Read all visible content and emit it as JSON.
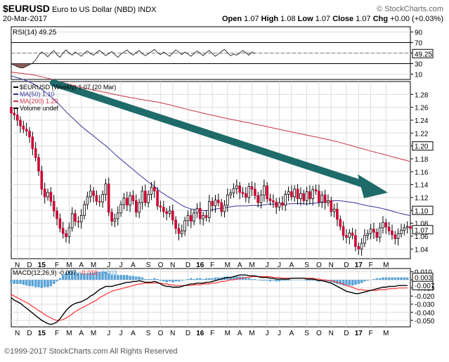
{
  "header": {
    "symbol": "$EURUSD",
    "name": "Euro to US Dollar (NBD)",
    "exchange": "INDX",
    "date": "20-Mar-2017",
    "open_label": "Open",
    "open": "1.07",
    "high_label": "High",
    "high": "1.08",
    "low_label": "Low",
    "low": "1.07",
    "close_label": "Close",
    "close": "1.07",
    "chg_label": "Chg",
    "chg": "+0.00 (+0.03%)",
    "watermark": "© StockCharts.com"
  },
  "footer": {
    "copyright": "©1999-2017 StockCharts.com All Rights Reserved"
  },
  "colors": {
    "up_candle": "#ffffff",
    "down_candle": "#cc0033",
    "candle_outline": "#000000",
    "ma50": "#333399",
    "ma200": "#cc3344",
    "arrow": "#1f6b6a",
    "rsi_line": "#333333",
    "rsi_fill": "#8c5a5a",
    "macd_line": "#000000",
    "signal_line": "#ff3333",
    "hist": "#5ba3d6",
    "grid": "#dddddd"
  },
  "chart_data": [
    {
      "type": "line",
      "panel": "rsi",
      "label": "RSI(14) 49.25",
      "last_value_label": "49.25",
      "ylim": [
        0,
        100
      ],
      "reference_lines": [
        70,
        30
      ],
      "y_ticks": [
        "90",
        "70",
        "50",
        "30",
        "10"
      ],
      "y_tick_values": [
        90,
        70,
        50,
        30,
        10
      ],
      "values": [
        29,
        27,
        24,
        22,
        22,
        25,
        28,
        31,
        37,
        46,
        52,
        48,
        43,
        50,
        55,
        47,
        42,
        50,
        56,
        50,
        46,
        52,
        48,
        44,
        50,
        54,
        49,
        46,
        51,
        55,
        50,
        45,
        49,
        53,
        47,
        42,
        48,
        52,
        56,
        50,
        46,
        51,
        55,
        49,
        45,
        49,
        53,
        57,
        51,
        47,
        52,
        48,
        44,
        50,
        56,
        52,
        47,
        52,
        48,
        44,
        49,
        54,
        50,
        45,
        51,
        55,
        49,
        44,
        48,
        53,
        57,
        51,
        45,
        48,
        46,
        50,
        55,
        51,
        46,
        52,
        49
      ]
    },
    {
      "type": "candlestick",
      "panel": "price",
      "legend": [
        {
          "label": "$EURUSD (Weekly) 1.07 (20 Mar)",
          "color": "#000000"
        },
        {
          "label": "MA(50) 1.10",
          "color": "#333399"
        },
        {
          "label": "MA(200) 1.20",
          "color": "#cc3344"
        },
        {
          "label": "Volume undef",
          "color": "#000000"
        }
      ],
      "ylim": [
        1.025,
        1.3
      ],
      "y_ticks": [
        "1.28",
        "1.26",
        "1.24",
        "1.22",
        "1.20",
        "1.18",
        "1.16",
        "1.14",
        "1.12",
        "1.10",
        "1.08",
        "1.06",
        "1.04"
      ],
      "y_tick_values": [
        1.28,
        1.26,
        1.24,
        1.22,
        1.2,
        1.18,
        1.16,
        1.14,
        1.12,
        1.1,
        1.08,
        1.06,
        1.04
      ],
      "last_labels": [
        "1.20",
        "1.10",
        "1.07"
      ],
      "last_label_values": [
        1.2,
        1.1,
        1.07
      ],
      "x_labels": [
        "N",
        "D",
        "15",
        "F",
        "M",
        "A",
        "M",
        "J",
        "J",
        "A",
        "S",
        "O",
        "N",
        "D",
        "16",
        "F",
        "M",
        "A",
        "M",
        "J",
        "J",
        "A",
        "S",
        "O",
        "N",
        "D",
        "17",
        "F",
        "M"
      ],
      "x_label_index": [
        2,
        6,
        10,
        15,
        19,
        23,
        27,
        32,
        36,
        40,
        45,
        49,
        53,
        58,
        62,
        66,
        71,
        75,
        79,
        84,
        88,
        92,
        97,
        101,
        105,
        110,
        114,
        118,
        123
      ],
      "close": [
        1.251,
        1.248,
        1.24,
        1.231,
        1.226,
        1.223,
        1.214,
        1.196,
        1.182,
        1.161,
        1.133,
        1.121,
        1.128,
        1.114,
        1.099,
        1.087,
        1.072,
        1.064,
        1.059,
        1.073,
        1.095,
        1.083,
        1.082,
        1.092,
        1.109,
        1.121,
        1.13,
        1.123,
        1.114,
        1.113,
        1.125,
        1.141,
        1.097,
        1.083,
        1.087,
        1.096,
        1.109,
        1.119,
        1.108,
        1.123,
        1.115,
        1.097,
        1.112,
        1.13,
        1.112,
        1.125,
        1.136,
        1.13,
        1.107,
        1.105,
        1.098,
        1.095,
        1.099,
        1.085,
        1.072,
        1.064,
        1.068,
        1.084,
        1.092,
        1.083,
        1.096,
        1.103,
        1.087,
        1.092,
        1.089,
        1.114,
        1.107,
        1.116,
        1.112,
        1.098,
        1.108,
        1.124,
        1.127,
        1.134,
        1.138,
        1.128,
        1.126,
        1.12,
        1.137,
        1.133,
        1.123,
        1.112,
        1.124,
        1.138,
        1.118,
        1.115,
        1.113,
        1.105,
        1.112,
        1.108,
        1.125,
        1.129,
        1.121,
        1.133,
        1.118,
        1.126,
        1.115,
        1.129,
        1.118,
        1.132,
        1.13,
        1.113,
        1.124,
        1.112,
        1.115,
        1.098,
        1.102,
        1.086,
        1.075,
        1.061,
        1.058,
        1.065,
        1.061,
        1.044,
        1.04,
        1.049,
        1.061,
        1.064,
        1.071,
        1.066,
        1.058,
        1.073,
        1.081,
        1.074,
        1.068,
        1.062,
        1.056,
        1.064,
        1.069,
        1.073,
        1.075,
        1.072
      ]
    },
    {
      "type": "line",
      "panel": "macd",
      "label": "MACD(12,26,9) -0.007, -0.010, 0.003",
      "label_macd": "MACD(12,26,9)",
      "label_v1": "-0.007",
      "label_v2": "-0.010",
      "label_v3": "0.003",
      "ylim": [
        -0.058,
        0.014
      ],
      "y_ticks": [
        "0.010",
        "0.000",
        "-0.010",
        "-0.020",
        "-0.030",
        "-0.040",
        "-0.050"
      ],
      "y_tick_values": [
        0.01,
        0.0,
        -0.01,
        -0.02,
        -0.03,
        -0.04,
        -0.05
      ],
      "last_labels": [
        "0.003",
        "-0.007"
      ],
      "last_label_values": [
        0.003,
        -0.007
      ],
      "x_labels": [
        "N",
        "D",
        "15",
        "F",
        "M",
        "A",
        "M",
        "J",
        "J",
        "A",
        "S",
        "O",
        "N",
        "D",
        "16",
        "F",
        "M",
        "A",
        "M",
        "J",
        "J",
        "A",
        "S",
        "O",
        "N",
        "D",
        "17",
        "F",
        "M"
      ],
      "x_label_index": [
        2,
        6,
        10,
        15,
        19,
        23,
        27,
        32,
        36,
        40,
        45,
        49,
        53,
        58,
        62,
        66,
        71,
        75,
        79,
        84,
        88,
        92,
        97,
        101,
        105,
        110,
        114,
        118,
        123
      ],
      "macd": [
        -0.022,
        -0.025,
        -0.027,
        -0.029,
        -0.032,
        -0.035,
        -0.038,
        -0.041,
        -0.044,
        -0.047,
        -0.05,
        -0.052,
        -0.054,
        -0.055,
        -0.054,
        -0.052,
        -0.048,
        -0.043,
        -0.038,
        -0.034,
        -0.031,
        -0.029,
        -0.028,
        -0.027,
        -0.025,
        -0.023,
        -0.02,
        -0.018,
        -0.015,
        -0.012,
        -0.01,
        -0.008,
        -0.008,
        -0.008,
        -0.007,
        -0.006,
        -0.005,
        -0.004,
        -0.003,
        -0.003,
        -0.002,
        -0.002,
        -0.001,
        -0.002,
        -0.003,
        -0.003,
        -0.003,
        -0.002,
        -0.003,
        -0.005,
        -0.007,
        -0.008,
        -0.008,
        -0.009,
        -0.009,
        -0.009,
        -0.008,
        -0.007,
        -0.006,
        -0.005,
        -0.005,
        -0.004,
        -0.004,
        -0.004,
        -0.003,
        -0.003,
        -0.002,
        -0.001,
        0.0,
        0.001,
        0.002,
        0.003,
        0.003,
        0.004,
        0.005,
        0.006,
        0.006,
        0.006,
        0.005,
        0.005,
        0.005,
        0.004,
        0.003,
        0.003,
        0.003,
        0.002,
        0.002,
        0.001,
        0.001,
        0.001,
        0.001,
        0.001,
        0.002,
        0.002,
        0.002,
        0.002,
        0.002,
        0.001,
        0.001,
        0.001,
        0.0,
        -0.001,
        -0.001,
        -0.002,
        -0.003,
        -0.004,
        -0.006,
        -0.008,
        -0.01,
        -0.012,
        -0.014,
        -0.015,
        -0.016,
        -0.017,
        -0.017,
        -0.016,
        -0.015,
        -0.014,
        -0.013,
        -0.012,
        -0.011,
        -0.01,
        -0.009,
        -0.009,
        -0.008,
        -0.008,
        -0.008,
        -0.007,
        -0.007,
        -0.007,
        -0.007
      ],
      "signal": [
        -0.018,
        -0.02,
        -0.022,
        -0.024,
        -0.026,
        -0.028,
        -0.03,
        -0.033,
        -0.035,
        -0.038,
        -0.04,
        -0.043,
        -0.045,
        -0.047,
        -0.049,
        -0.05,
        -0.05,
        -0.049,
        -0.047,
        -0.045,
        -0.042,
        -0.039,
        -0.037,
        -0.035,
        -0.033,
        -0.031,
        -0.029,
        -0.027,
        -0.025,
        -0.022,
        -0.02,
        -0.018,
        -0.016,
        -0.014,
        -0.013,
        -0.012,
        -0.011,
        -0.01,
        -0.009,
        -0.008,
        -0.007,
        -0.006,
        -0.005,
        -0.005,
        -0.004,
        -0.004,
        -0.004,
        -0.004,
        -0.004,
        -0.004,
        -0.005,
        -0.005,
        -0.006,
        -0.006,
        -0.007,
        -0.007,
        -0.007,
        -0.007,
        -0.007,
        -0.007,
        -0.006,
        -0.006,
        -0.006,
        -0.005,
        -0.005,
        -0.005,
        -0.004,
        -0.004,
        -0.003,
        -0.002,
        -0.002,
        -0.001,
        0.0,
        0.0,
        0.001,
        0.002,
        0.002,
        0.003,
        0.003,
        0.004,
        0.004,
        0.004,
        0.004,
        0.004,
        0.004,
        0.004,
        0.003,
        0.003,
        0.003,
        0.002,
        0.002,
        0.002,
        0.002,
        0.002,
        0.002,
        0.002,
        0.002,
        0.002,
        0.002,
        0.002,
        0.001,
        0.001,
        0.0,
        0.0,
        -0.001,
        -0.001,
        -0.002,
        -0.003,
        -0.004,
        -0.005,
        -0.007,
        -0.008,
        -0.009,
        -0.011,
        -0.012,
        -0.012,
        -0.013,
        -0.013,
        -0.013,
        -0.013,
        -0.013,
        -0.012,
        -0.012,
        -0.012,
        -0.011,
        -0.011,
        -0.011,
        -0.01,
        -0.01,
        -0.01,
        -0.01
      ]
    }
  ]
}
